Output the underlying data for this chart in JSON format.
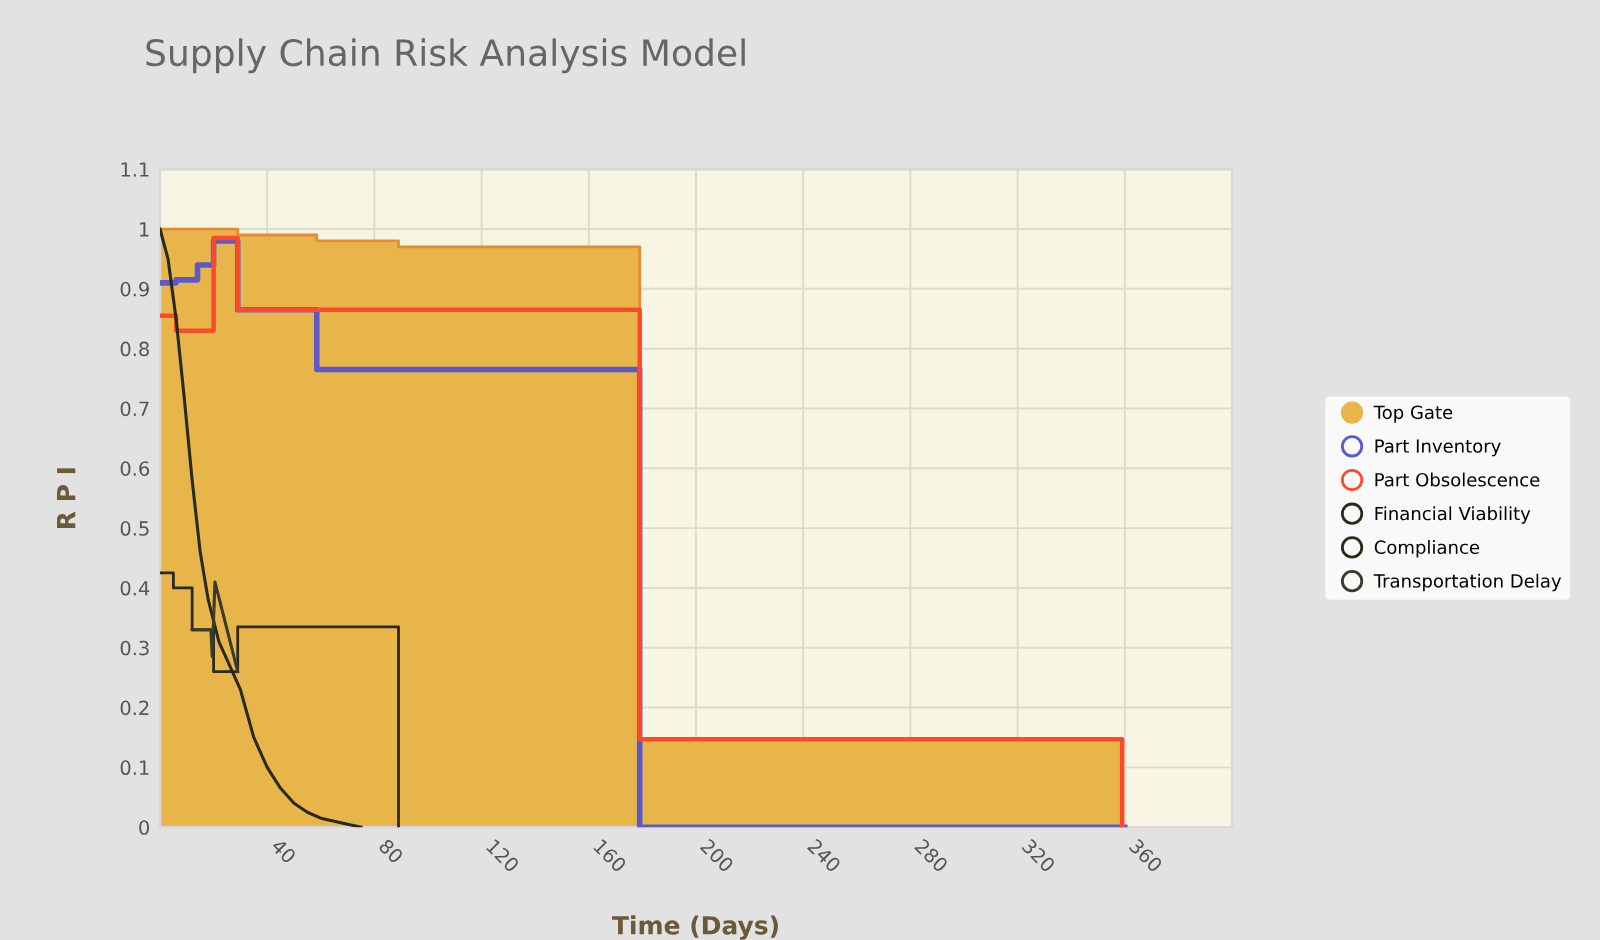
{
  "chart_data": {
    "type": "step",
    "title": "Supply Chain Risk Analysis Model",
    "xlabel": "Time (Days)",
    "ylabel": "R P I",
    "xlim": [
      0,
      400
    ],
    "xticks": [
      40,
      80,
      120,
      160,
      200,
      240,
      280,
      320,
      360
    ],
    "ylim": [
      0,
      1.1
    ],
    "yticks": [
      0,
      0.1,
      0.2,
      0.3,
      0.4,
      0.5,
      0.6,
      0.7,
      0.8,
      0.9,
      1,
      1.1
    ],
    "grid": true,
    "legend": "right",
    "marker": "none",
    "series": [
      {
        "name": "Top Gate",
        "type": "area",
        "color": "#e8b54a",
        "x": [
          0,
          29,
          29,
          58.5,
          58.5,
          89,
          89,
          179,
          179,
          359,
          359
        ],
        "values": [
          1,
          1,
          0.99,
          0.99,
          0.98,
          0.98,
          0.97,
          0.97,
          0.147,
          0.147,
          0
        ]
      },
      {
        "name": "Part Inventory",
        "color": "#5a5acc",
        "x": [
          0,
          6,
          14,
          20,
          29,
          58.5,
          179,
          360
        ],
        "values": [
          0.91,
          0.915,
          0.94,
          0.98,
          0.865,
          0.765,
          0,
          0
        ]
      },
      {
        "name": "Part Obsolescence",
        "color": "#ff4a2a",
        "x": [
          0,
          6,
          20,
          29,
          179,
          359
        ],
        "values": [
          0.855,
          0.83,
          0.985,
          0.865,
          0.147,
          0
        ]
      },
      {
        "name": "Financial Viability",
        "type": "line",
        "color": "#2a2a1a",
        "x": [
          0,
          3,
          6,
          9,
          12,
          15,
          18,
          22,
          26,
          30,
          35,
          40,
          45,
          50,
          55,
          60,
          70,
          75
        ],
        "values": [
          1,
          0.95,
          0.85,
          0.72,
          0.58,
          0.46,
          0.38,
          0.31,
          0.27,
          0.23,
          0.15,
          0.1,
          0.065,
          0.04,
          0.025,
          0.015,
          0.005,
          0
        ]
      },
      {
        "name": "Compliance",
        "color": "#2a2a1a",
        "x": [
          0,
          5,
          12,
          20,
          29,
          89
        ],
        "values": [
          0.425,
          0.4,
          0.33,
          0.26,
          0.335,
          0
        ]
      },
      {
        "name": "Transportation Delay",
        "type": "line",
        "color": "#3a3a2a",
        "x": [
          12,
          19,
          19.5,
          20.5,
          29
        ],
        "values": [
          0.33,
          0.33,
          0.285,
          0.41,
          0.26
        ]
      }
    ]
  }
}
